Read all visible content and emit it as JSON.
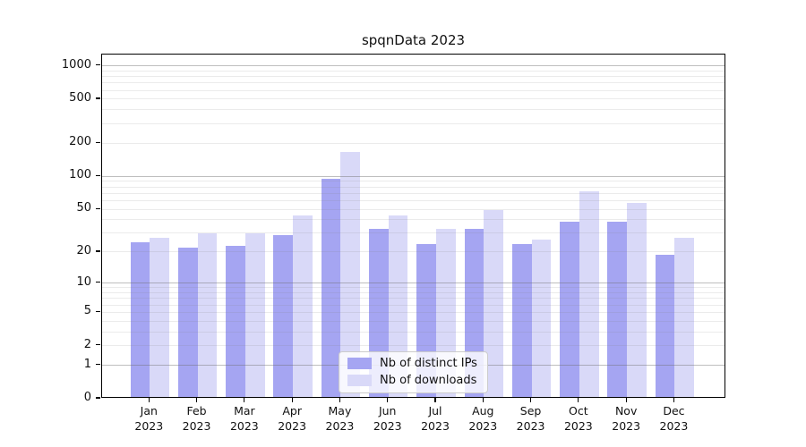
{
  "chart_data": {
    "type": "bar",
    "title": "spqnData 2023",
    "categories": [
      {
        "month": "Jan",
        "year": "2023"
      },
      {
        "month": "Feb",
        "year": "2023"
      },
      {
        "month": "Mar",
        "year": "2023"
      },
      {
        "month": "Apr",
        "year": "2023"
      },
      {
        "month": "May",
        "year": "2023"
      },
      {
        "month": "Jun",
        "year": "2023"
      },
      {
        "month": "Jul",
        "year": "2023"
      },
      {
        "month": "Aug",
        "year": "2023"
      },
      {
        "month": "Sep",
        "year": "2023"
      },
      {
        "month": "Oct",
        "year": "2023"
      },
      {
        "month": "Nov",
        "year": "2023"
      },
      {
        "month": "Dec",
        "year": "2023"
      }
    ],
    "series": [
      {
        "name": "Nb of distinct IPs",
        "color": "#a5a5f2",
        "values": [
          24,
          21,
          22,
          28,
          92,
          32,
          23,
          32,
          23,
          37,
          37,
          18
        ]
      },
      {
        "name": "Nb of downloads",
        "color": "#d9d9f8",
        "values": [
          26,
          29,
          29,
          42,
          160,
          42,
          32,
          47,
          25,
          70,
          55,
          26
        ]
      }
    ],
    "y_scale": "log1p",
    "y_ticks": [
      0,
      1,
      2,
      5,
      10,
      20,
      50,
      100,
      200,
      500,
      1000
    ],
    "ylim": [
      0,
      1266
    ],
    "xlabel": "",
    "ylabel": "",
    "grid": true,
    "legend_position": "lower center"
  }
}
